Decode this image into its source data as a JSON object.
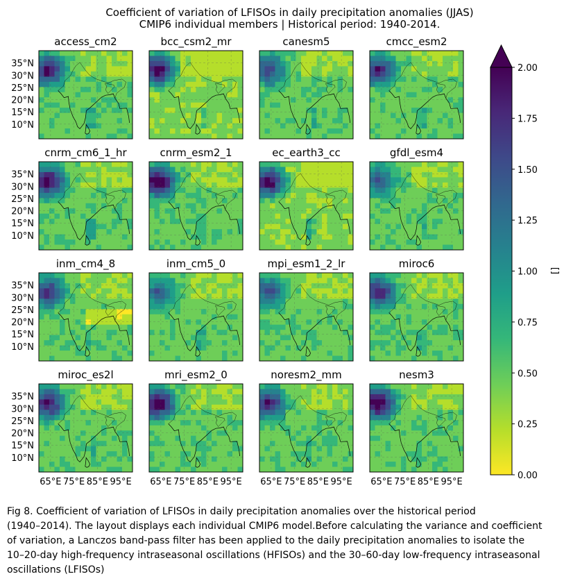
{
  "figure": {
    "title_line1": "Coefficient of variation of LFISOs in daily precipitation anomalies (JJAS)",
    "title_line2": "CMIP6 individual members | Historical period: 1940-2014."
  },
  "chart_data": {
    "type": "heatmap",
    "panels": [
      {
        "model": "access_cm2"
      },
      {
        "model": "bcc_csm2_mr"
      },
      {
        "model": "canesm5"
      },
      {
        "model": "cmcc_esm2"
      },
      {
        "model": "cnrm_cm6_1_hr"
      },
      {
        "model": "cnrm_esm2_1"
      },
      {
        "model": "ec_earth3_cc"
      },
      {
        "model": "gfdl_esm4"
      },
      {
        "model": "inm_cm4_8"
      },
      {
        "model": "inm_cm5_0"
      },
      {
        "model": "mpi_esm1_2_lr"
      },
      {
        "model": "miroc6"
      },
      {
        "model": "miroc_es2l"
      },
      {
        "model": "mri_esm2_0"
      },
      {
        "model": "noresm2_mm"
      },
      {
        "model": "nesm3"
      }
    ],
    "y_ticks": [
      "35°N",
      "30°N",
      "25°N",
      "20°N",
      "15°N",
      "10°N"
    ],
    "x_ticks": [
      "65°E",
      "75°E",
      "85°E",
      "95°E"
    ],
    "lat_values": [
      35,
      30,
      25,
      20,
      15,
      10
    ],
    "lon_values": [
      65,
      75,
      85,
      95
    ],
    "colorbar": {
      "label": "[]",
      "range": [
        0,
        2
      ],
      "ticks": [
        "2.00",
        "1.75",
        "1.50",
        "1.25",
        "1.00",
        "0.75",
        "0.50",
        "0.25",
        "0.00"
      ],
      "tick_values": [
        2.0,
        1.75,
        1.5,
        1.25,
        1.0,
        0.75,
        0.5,
        0.25,
        0.0
      ],
      "extend": "max",
      "colormap": "viridis_r",
      "colors": [
        "#fde725",
        "#b5de2b",
        "#6ece58",
        "#35b779",
        "#1f9e89",
        "#26828e",
        "#31688e",
        "#3e4989",
        "#482878",
        "#440154"
      ]
    }
  },
  "caption": {
    "line1": "Fig 8. Coefficient of variation of LFISOs in daily precipitation anomalies over the historical period",
    "line2": "(1940–2014). The layout displays each individual CMIP6 model.Before calculating the variance and coefficient",
    "line3": "of variation, a Lanczos band-pass filter has been applied to the daily precipitation anomalies to isolate the",
    "line4": "10–20-day high-frequency intraseasonal oscillations (HFISOs) and the 30–60-day low-frequency intraseasonal",
    "line5": "oscillations (LFISOs)"
  }
}
